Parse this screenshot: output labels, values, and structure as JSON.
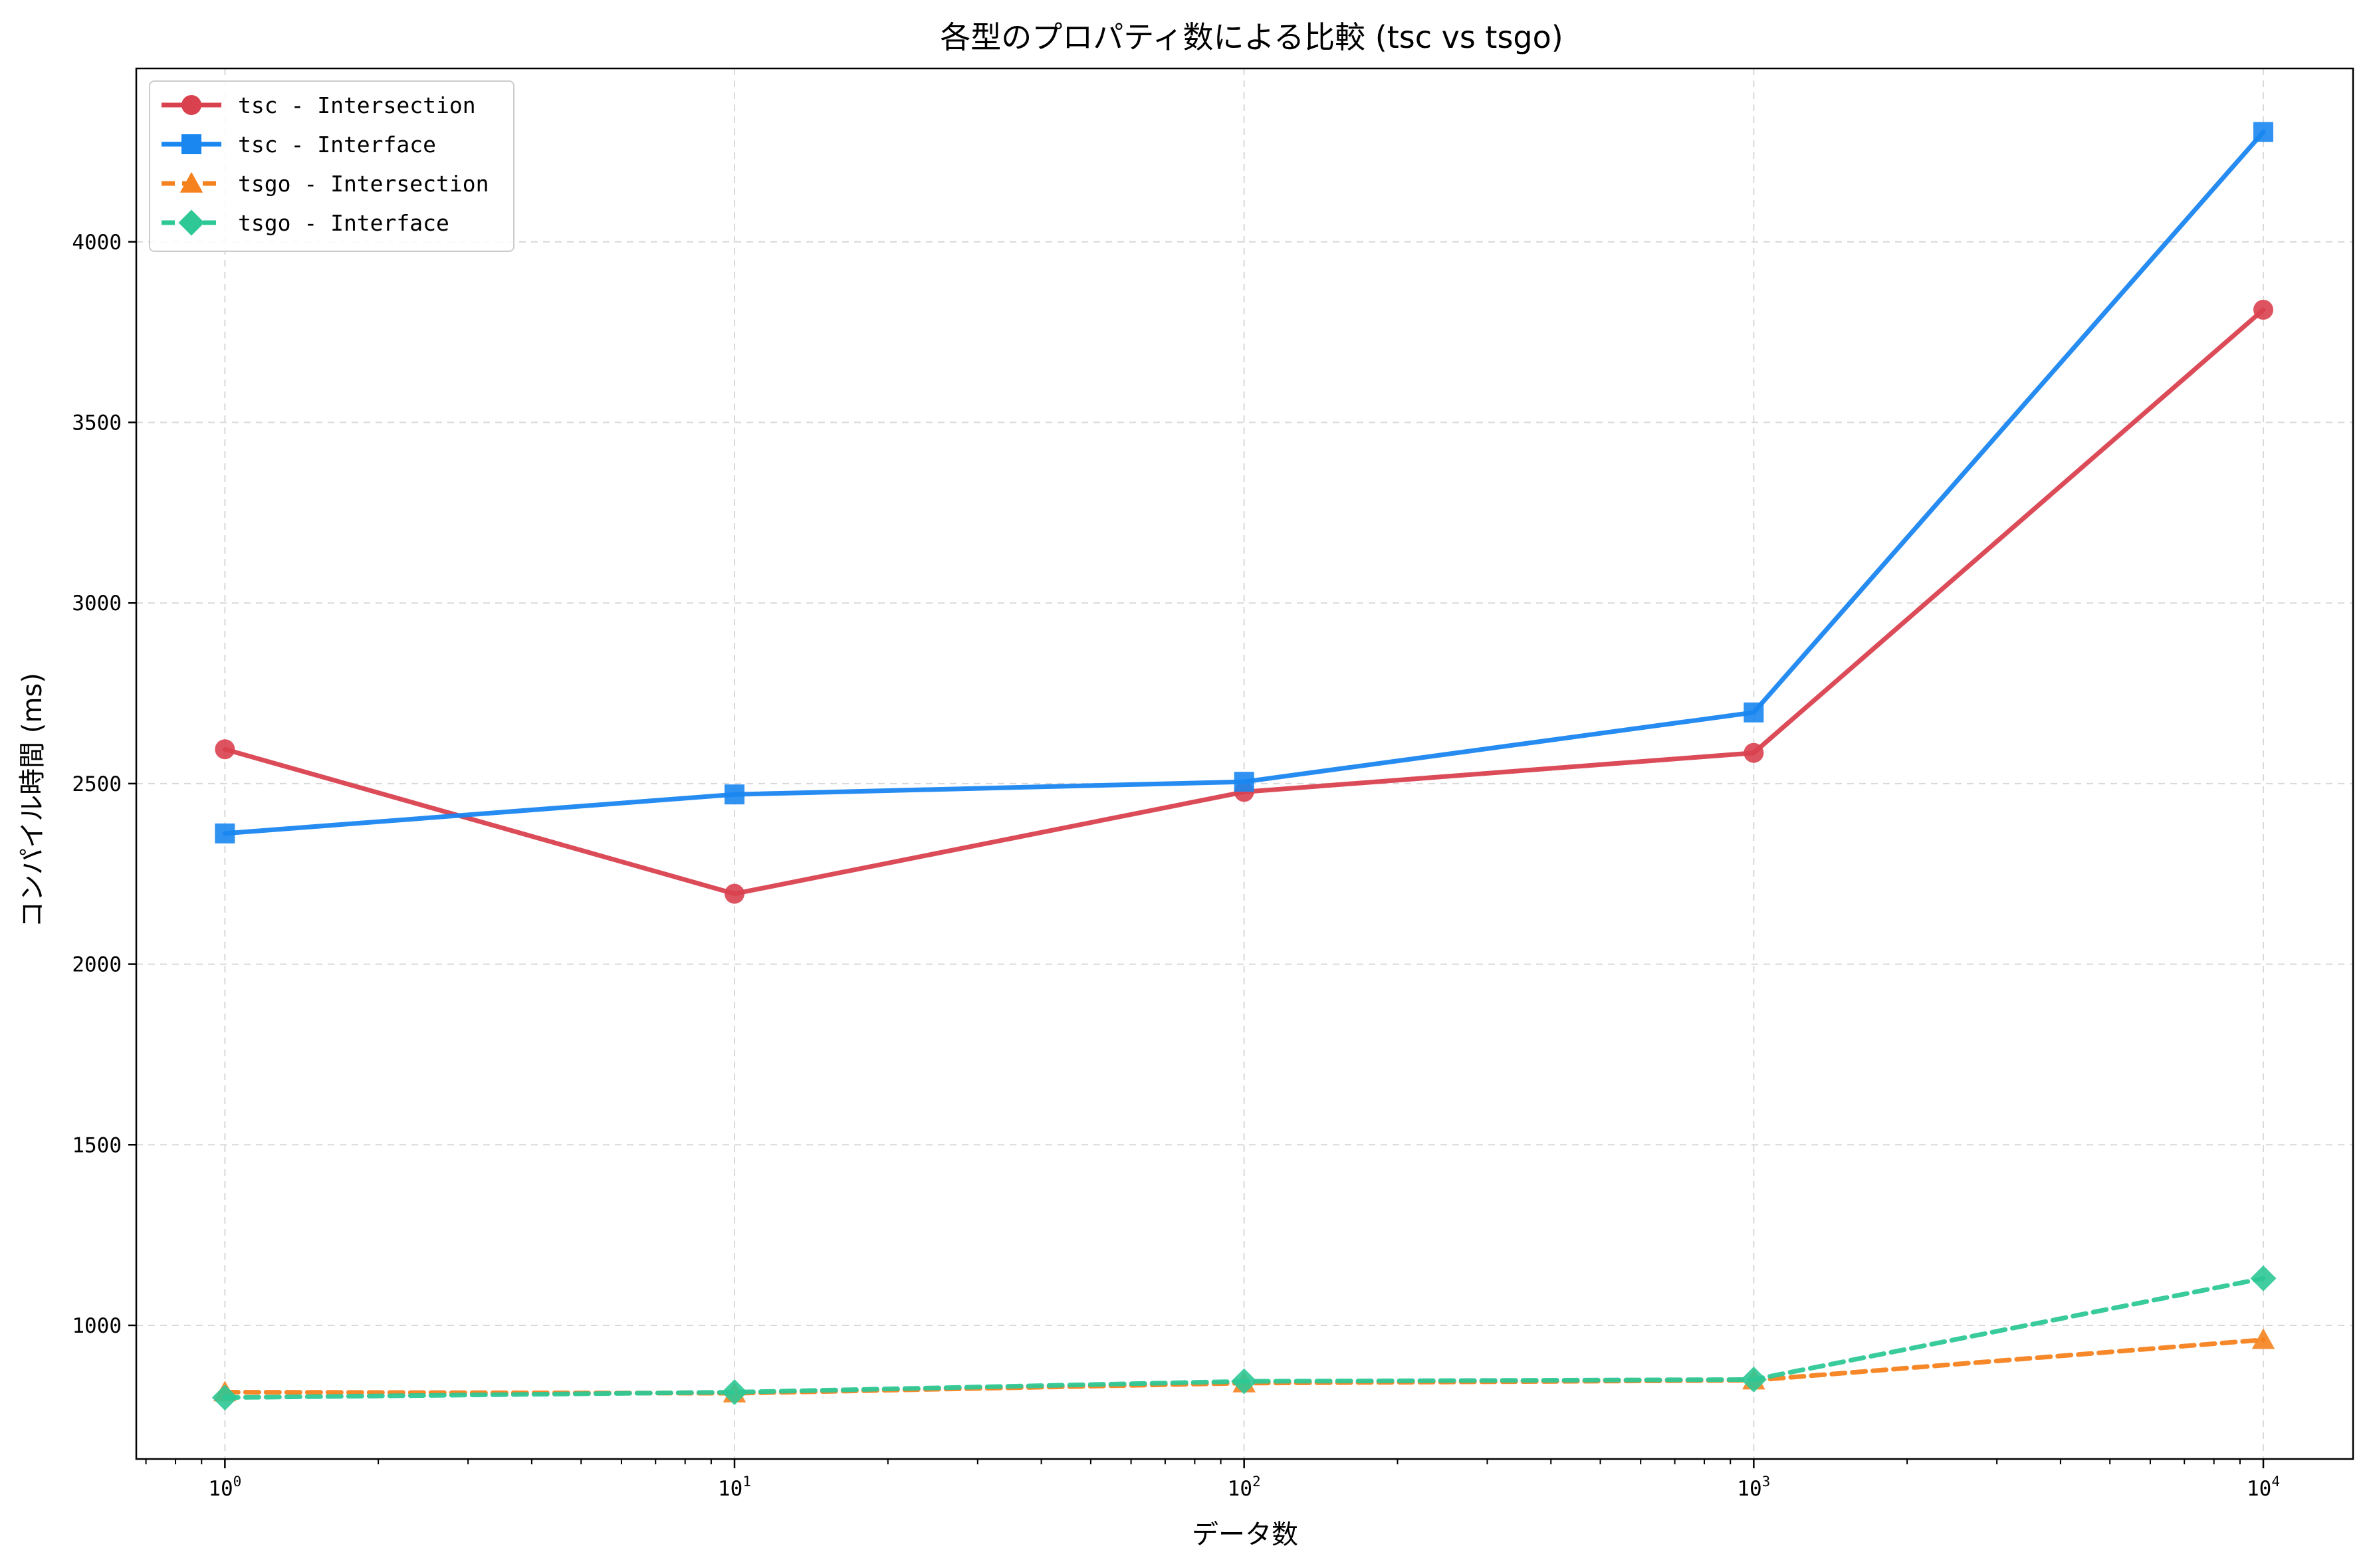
{
  "chart_data": {
    "type": "line",
    "title": "各型のプロパティ数による比較 (tsc vs tsgo)",
    "xlabel": "データ数",
    "ylabel": "コンパイル時間 (ms)",
    "x_scale": "log",
    "x": [
      1,
      10,
      100,
      1000,
      10000
    ],
    "x_tick_labels": [
      {
        "base": "10",
        "exp": "0"
      },
      {
        "base": "10",
        "exp": "1"
      },
      {
        "base": "10",
        "exp": "2"
      },
      {
        "base": "10",
        "exp": "3"
      },
      {
        "base": "10",
        "exp": "4"
      }
    ],
    "xlim": [
      0.67,
      15000
    ],
    "ylim": [
      630,
      4480
    ],
    "y_ticks": [
      1000,
      1500,
      2000,
      2500,
      3000,
      3500,
      4000
    ],
    "y_tick_labels": [
      "1000",
      "1500",
      "2000",
      "2500",
      "3000",
      "3500",
      "4000"
    ],
    "grid": true,
    "legend_position": "upper left",
    "series": [
      {
        "name": "tsc - Intersection",
        "values": [
          2595,
          2195,
          2477,
          2585,
          3812
        ],
        "color": "#d9414f",
        "marker": "circle",
        "line_style": "solid"
      },
      {
        "name": "tsc - Interface",
        "values": [
          2362,
          2470,
          2505,
          2697,
          4304
        ],
        "color": "#1a86f0",
        "marker": "square",
        "line_style": "solid"
      },
      {
        "name": "tsgo - Intersection",
        "values": [
          815,
          812,
          840,
          848,
          960
        ],
        "color": "#f5821f",
        "marker": "triangle",
        "line_style": "dashed"
      },
      {
        "name": "tsgo - Interface",
        "values": [
          800,
          815,
          845,
          850,
          1130
        ],
        "color": "#2ec896",
        "marker": "diamond",
        "line_style": "dashed"
      }
    ]
  }
}
